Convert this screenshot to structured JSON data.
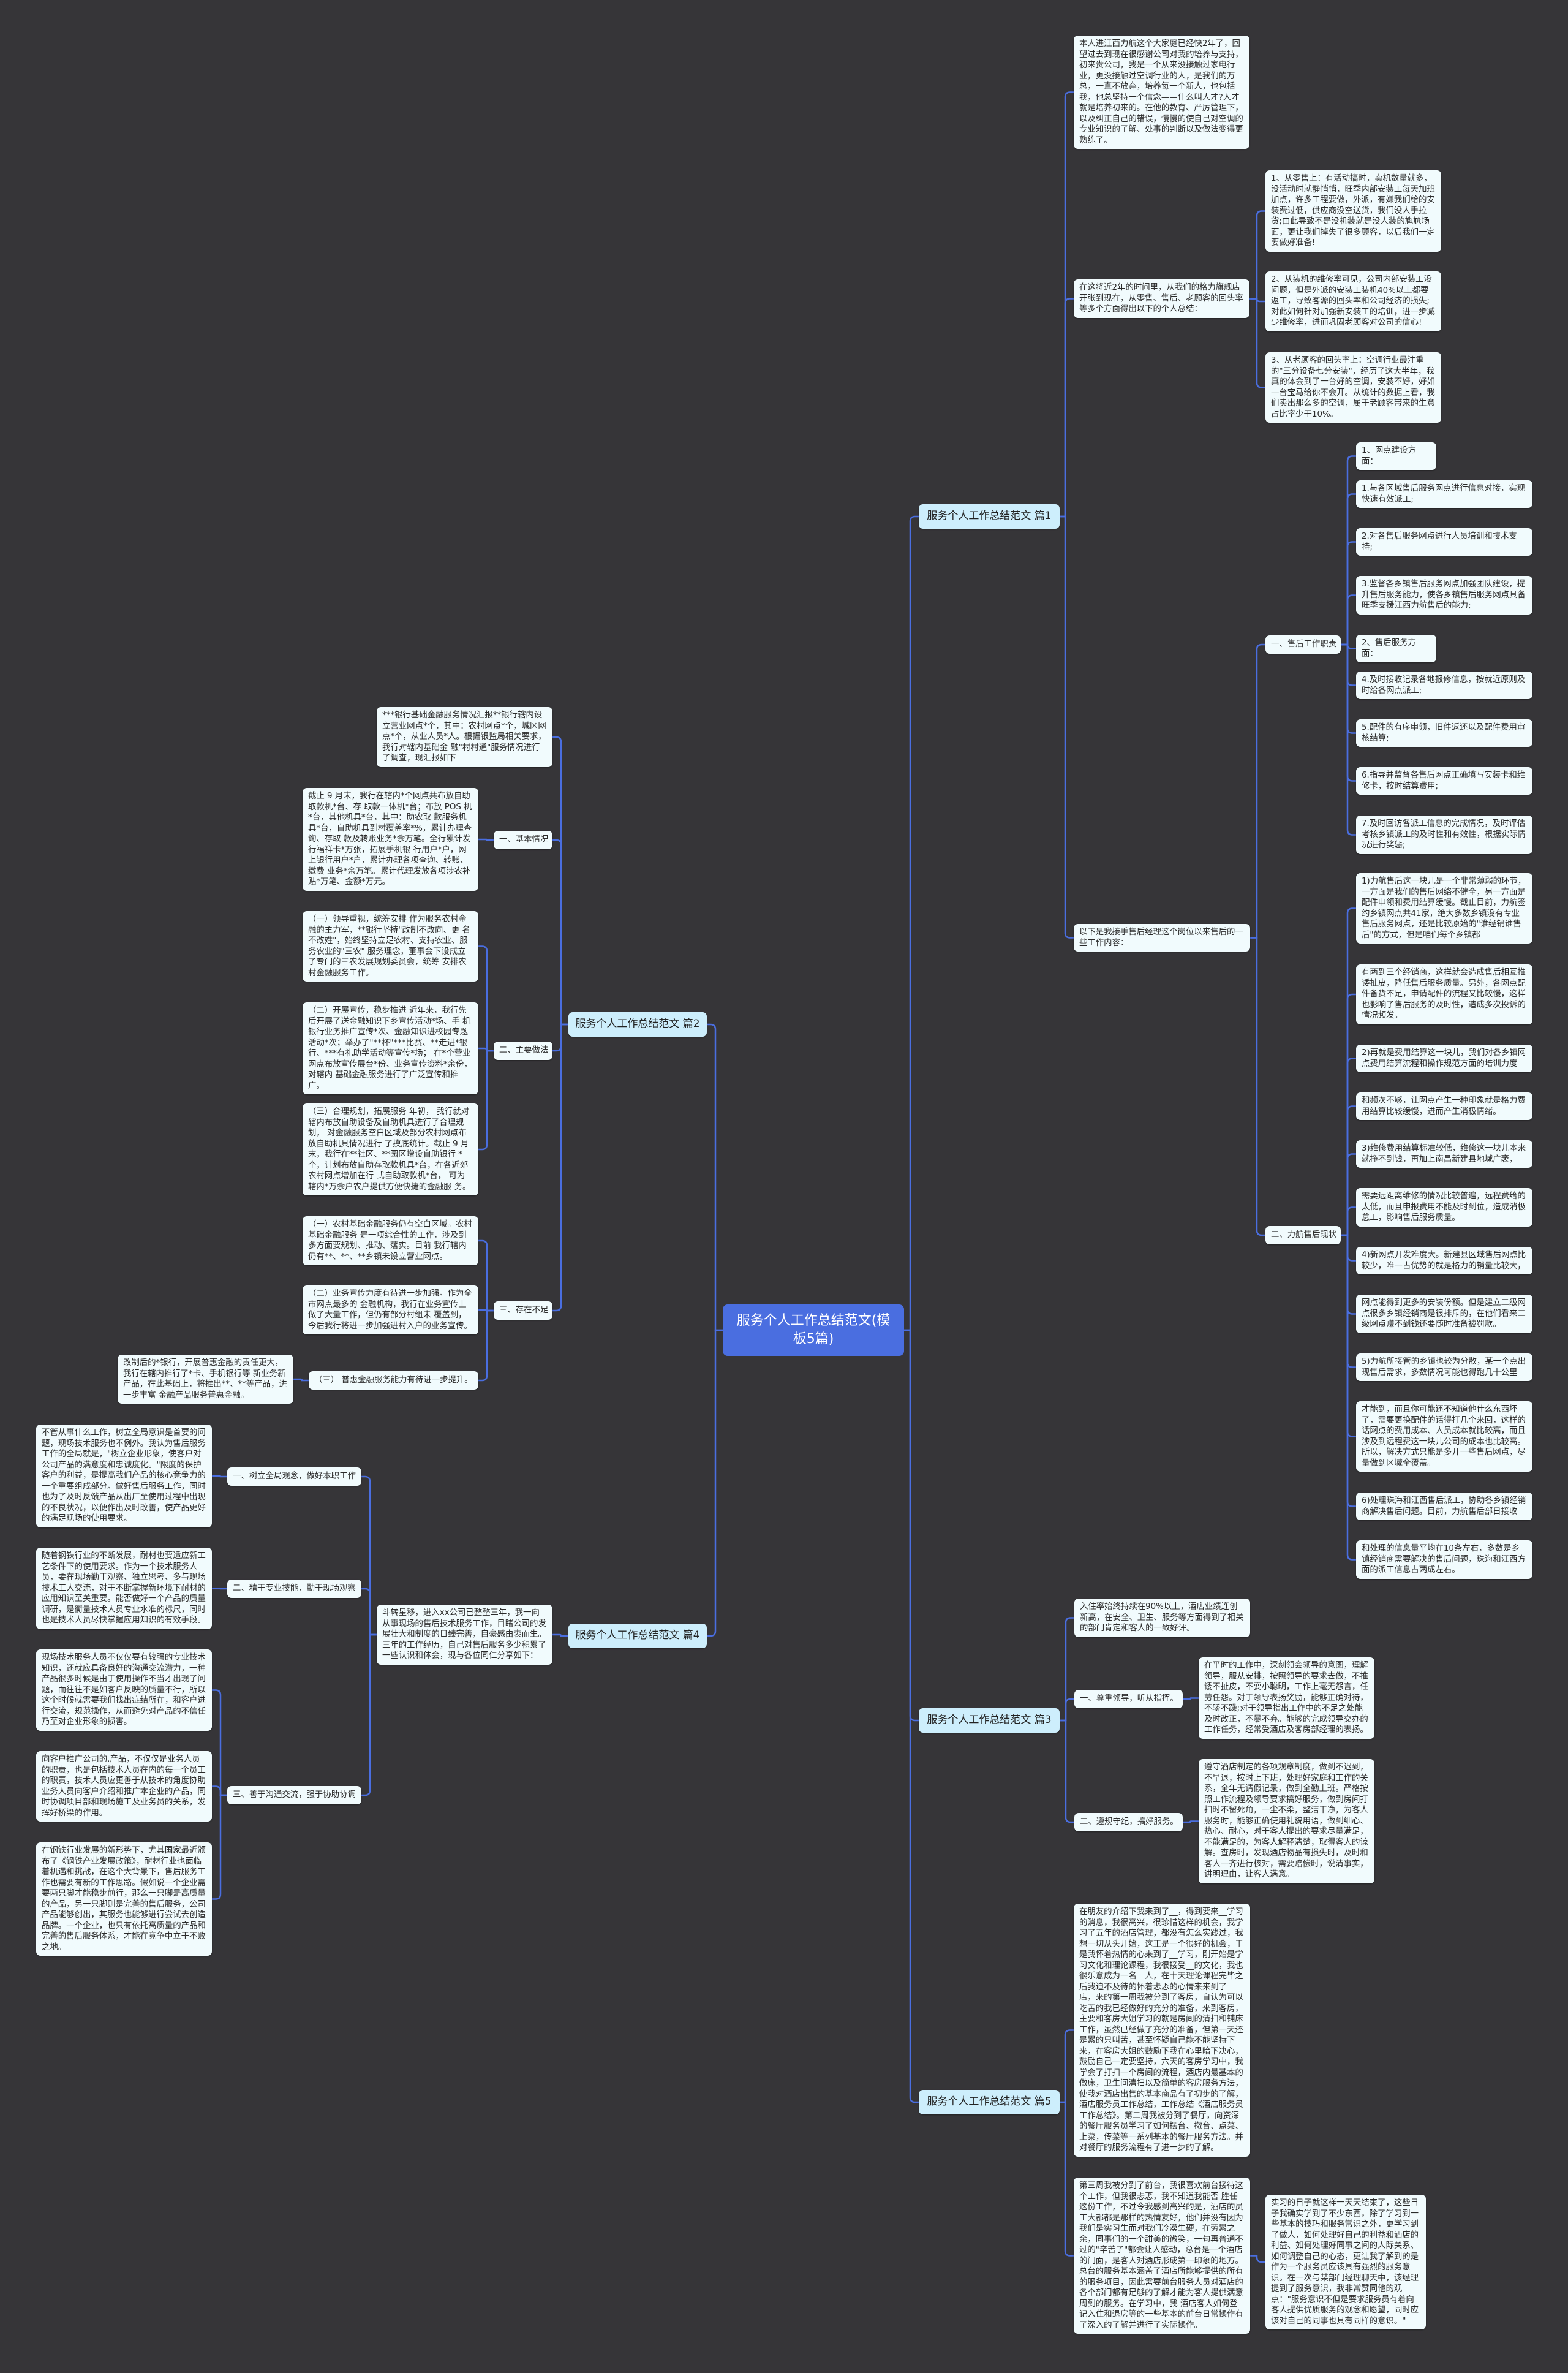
{
  "colors": {
    "background": "#363538",
    "root": "#4a6ee0",
    "branch": "#cdeefc",
    "node": "#f1fbfd",
    "connector": "#4a6ee0"
  },
  "root": {
    "title": "服务个人工作总结范文(模板5篇)"
  },
  "p1": {
    "title": "服务个人工作总结范文 篇1",
    "intro": "本人进江西力航这个大家庭已经快2年了，回望过去到现在很感谢公司对我的培养与支持，初来贵公司，我是一个从来没接触过家电行业，更没接触过空调行业的人，是我们的万总，一直不放弃，培养每一个新人，也包括我，他总坚持一个信念——什么叫人才?人才就是培养初来的。在他的教育、严厉管理下，以及纠正自己的错误，慢慢的使自己对空调的专业知识的了解、处事的判断以及做法变得更熟练了。",
    "summary": "在这将近2年的时间里，从我们的格力旗舰店开张到现在，从零售、售后、老顾客的回头率等多个方面得出以下的个人总结：",
    "summary_items": [
      "1、从零售上：有活动搞时，卖机数量就多，没活动时就静悄悄，旺季内部安装工每天加班加点，许多工程要做，外派，有嫌我们给的安装费过低，供应商没空送货，我们没人手拉货;由此导致不是没机装就是没人装的尴尬场面，更让我们掉失了很多顾客，以后我们一定要做好准备!",
      "2、从装机的维修率可见，公司内部安装工没问题，但是外派的安装工装机40%以上都要返工，导致客源的回头率和公司经济的损失;对此如何针对加强新安装工的培训，进一步减少维修率，进而巩固老顾客对公司的信心!",
      "3、从老顾客的回头率上：空调行业最注重的\"三分设备七分安装\"，经历了这大半年，我真的体会到了一台好的空调，安装不好，好如一台宝马给你不会开。从统计的数据上看，我们卖出那么多的空调，属于老顾客带来的生意占比率少于10%。"
    ],
    "work": "以下是我接手售后经理这个岗位以来售后的一些工作内容：",
    "duties": {
      "label": "一、售后工作职责",
      "items": [
        "1、网点建设方面：",
        "1.与各区域售后服务网点进行信息对接，实现快速有效派工;",
        "2.对各售后服务网点进行人员培训和技术支持;",
        "3.监督各乡镇售后服务网点加强团队建设，提升售后服务能力，使各乡镇售后服务网点具备旺季支援江西力航售后的能力;",
        "2、售后服务方面：",
        "4.及时接收记录各地报修信息，按就近原则及时给各网点派工;",
        "5.配件的有序申领，旧件返还以及配件费用审核结算;",
        "6.指导并监督各售后网点正确填写安装卡和维修卡，按时结算费用;",
        "7.及时回访各派工信息的完成情况，及时评估考核乡镇派工的及时性和有效性，根据实际情况进行奖惩;"
      ]
    },
    "status": {
      "label": "二、力航售后现状",
      "items": [
        "1)力航售后这一块儿是一个非常薄弱的环节，一方面是我们的售后网络不健全，另一方面是配件申领和费用结算缓慢。截止目前，力航签约乡镇网点共41家，绝大多数乡镇没有专业售后服务网点，还是比较原始的\"谁经销谁售后\"的方式，但是咱们每个乡镇都",
        "有两到三个经销商，这样就会造成售后相互推诿扯皮，降低售后服务质量。另外，各网点配件备货不足，申请配件的流程又比较慢，这样也影响了售后服务的及时性，造成多次投诉的情况频发。",
        "2)再就是费用结算这一块儿，我们对各乡镇网点费用结算流程和操作规范方面的培训力度",
        "和频次不够，让网点产生一种印象就是格力费用结算比较缓慢，进而产生消极情绪。",
        "3)维修费用结算标准较低，维修这一块儿本来就挣不到钱，再加上南昌新建县地域广袤，",
        "需要远距离维修的情况比较普遍，远程费给的太低，而且申报费用不能及时到位，造成消极怠工，影响售后服务质量。",
        "4)新网点开发难度大。新建县区域售后网点比较少，唯一占优势的就是格力的销量比较大，",
        "网点能得到更多的安装份额。但是建立二级网点很多乡镇经销商是很排斥的，在他们看来二级网点赚不到钱还要随时准备被罚款。",
        "5)力航所接管的乡镇也较为分散，某一个点出现售后需求，多数情况可能也得跑几十公里",
        "才能到，而且你可能还不知道他什么东西坏了，需要更换配件的话得打几个来回，这样的话网点的费用成本、人员成本就比较高，而且涉及到远程费这一块儿公司的成本也比较高。所以，解决方式只能是多开一些售后网点，尽量做到区域全覆盖。",
        "6)处理珠海和江西售后派工，协助各乡镇经销商解决售后问题。目前，力航售后部日接收",
        "和处理的信息量平均在10条左右，多数是乡镇经销商需要解决的售后问题，珠海和江西方面的派工信息占两成左右。"
      ]
    }
  },
  "p2": {
    "title": "服务个人工作总结范文 篇2",
    "intro": "***银行基础金融服务情况汇报**银行辖内设立营业网点*个，其中：农村网点*个，城区网点*个，从业人员*人。根据银监局相关要求，我行对辖内基础金 融\"村村通\"服务情况进行了调查，现汇报如下",
    "basic": {
      "label": "一、基本情况",
      "text": "截止 9 月末，我行在辖内*个网点共布放自助取款机*台、存 取款一体机*台；布放 POS 机*台，其他机具*台，其中：助农取 款服务机具*台，自助机具到村覆盖率*%，累计办理查询、存取 款及转账业务*余万笔。全行累计发行福祥卡*万张，拓展手机银 行用户*户，网上银行用户*户，累计办理各项查询、转账、缴费 业务*余万笔。累计代理发放各项涉农补贴*万笔、金额*万元。"
    },
    "practice": {
      "label": "二、主要做法",
      "items": [
        "（一）领导重视，统筹安排 作为服务农村金融的主力军，**银行坚持\"改制不改向、更 名不改姓\"，始终坚持立足农村、支持农业、服务农业的\"三农\" 服务理念，董事会下设成立了专门的三农发展规划委员会，统筹 安排农村金融服务工作。",
        "（二）开展宣传，稳步推进 近年来，我行先后开展了送金融知识下乡宣传活动*场、手 机银行业务推广宣传*次、金融知识进校园专题活动*次；举办了\"**杯\"***比赛、**走进*银行、***有礼助学活动等宣传*场； 在*个营业网点布放宣传展台*份、业务宣传资料*余份，对辖内 基础金融服务进行了广泛宣传和推广。",
        "（三）合理规划，拓展服务 年初， 我行就对辖内布放自助设备及自助机具进行了合理规划， 对金融服务空白区域及部分农村网点布放自助机具情况进行 了摸底统计。截止 9 月末，我行在**社区、**园区增设自助银行 *个，计划布放自助存取款机具*台，在各近郊农村网点增加在行 式自助取款机*台， 可为辖内*万余户农户提供方便快捷的金融服 务。"
      ]
    },
    "shortage": {
      "label": "三、存在不足",
      "items": [
        "（一）农村基础金融服务仍有空白区域。农村基础金融服务 是一项综合性的工作，涉及到多方面要规划、推动、落实。目前 我行辖内仍有**、**、**乡镇未设立营业网点。",
        "（二）业务宣传力度有待进一步加强。作为全市网点最多的 金融机构，我行在业务宣传上做了大量工作，但仍有部分村组未 覆盖到，今后我行将进一步加强进村入户的业务宣传。"
      ],
      "third": {
        "label": "（三） 普惠金融服务能力有待进一步提升。",
        "text": "改制后的*银行，开展普惠金融的责任更大，我行在辖内推行了*卡、手机银行等 新业务新产品，在此基础上，将推出**、**等产品，进一步丰富 金融产品服务普惠金融。"
      }
    }
  },
  "p3": {
    "title": "服务个人工作总结范文 篇3",
    "intro": "入住率始终持续在90%以上，酒店业绩连创新高，在安全、卫生、服务等方面得到了相关的部门肯定和客人的一致好评。",
    "s1": {
      "label": "一、尊重领导，听从指挥。",
      "text": "在平时的工作中，深刻领会领导的意图，理解领导，服从安排，按照领导的要求去做，不推诿不扯皮，不耍小聪明，工作上毫无怨言，任劳任怨。对于领导表扬奖励，能够正确对待，不骄不躁;对于领导指出工作中的不足之处能及时改正，不暴不弃。能够的完成领导交办的工作任务，经常受酒店及客房部经理的表扬。"
    },
    "s2": {
      "label": "二、遵规守纪，搞好服务。",
      "text": "遵守酒店制定的各项规章制度，做到不迟到，不早退，按时上下班，处理好家庭和工作的关系，全年无请假记录，做到全勤上班。严格按照工作流程及领导要求搞好服务，做到房间打扫时不留死角，一尘不染，整洁干净，为客人服务时，能够正确使用礼貌用语，做到细心、热心、耐心，对于客人提出的要求尽量满足，不能满足的，为客人解释清楚，取得客人的谅解。查房时，发现酒店物品有损失时，及时和客人一齐进行核对，需要赔偿时，说清事实，讲明理由，让客人满意。"
    }
  },
  "p4": {
    "title": "服务个人工作总结范文 篇4",
    "intro": "斗转星移，进入xx公司已整整三年，我一向从事现场的售后技术服务工作，目睹公司的发展壮大和制度的日臻完善，自豪感由衷而生。三年的工作经历，自己对售后服务多少积累了一些认识和体会，现与各位同仁分享如下：",
    "s1": {
      "label": "一、树立全局观念，做好本职工作",
      "text": "不管从事什么工作，树立全局意识是首要的问题，现场技术服务也不例外。我认为售后服务工作的全局就是，\"树立企业形象，使客户对公司产品的满意度和忠诚度化。\"限度的保护客户的利益，是提高我们产品的核心竞争力的一个重要组成部分。做好售后服务工作，同时也为了及时反馈产品从出厂至使用过程中出现的不良状况，以便作出及时改善，使产品更好的满足现场的使用要求。"
    },
    "s2": {
      "label": "二、精于专业技能，勤于现场观察",
      "text": "随着钢铁行业的不断发展，耐材也要适应新工艺条件下的使用要求。作为一个技术服务人员，要在现场勤于观察、独立思考、多与现场技术工人交流，对于不断掌握新环境下耐材的应用知识至关重要。能否做好一个产品的质量调研，是衡量技术人员专业水准的标尺，同时也是技术人员尽快掌握应用知识的有效手段。"
    },
    "s3": {
      "label": "三、善于沟通交流，强于协助协调",
      "items": [
        "现场技术服务人员不仅仅要有较强的专业技术知识，还就应具备良好的沟通交流潜力，一种产品很多时候是由于使用操作不当才出现了问题，而往往不是如客户反映的质量不行，所以这个时候就需要我们找出症结所在，和客户进行交流，规范操作，从而避免对产品的不信任乃至对企业形象的损害。",
        "向客户推广公司的.产品，不仅仅是业务人员的职责，也是包括技术人员在内的每一个员工的职责，技术人员应更善于从技术的角度协助业务人员向客户介绍和推广本企业的产品，同时协调项目部和现场施工及业务员的关系，发挥好桥梁的作用。",
        "在钢铁行业发展的新形势下，尤其国家最近颁布了《钢铁产业发展政策》，耐材行业也面临着机遇和挑战，在这个大背景下，售后服务工作也需要有新的工作思路。假如说一个企业需要两只脚才能稳步前行，那么一只脚是高质量的产品，另一只脚则是完善的售后服务，公司产品能够创出，其服务也能够进行尝试去创造品牌。一个企业，也只有依托高质量的产品和完善的售后服务体系，才能在竞争中立于不败之地。"
      ]
    }
  },
  "p5": {
    "title": "服务个人工作总结范文 篇5",
    "items": [
      "在朋友的介绍下我来到了__，得到要来__学习的消息，我很高兴，很珍惜这样的机会，我学习了五年的酒店管理，都没有怎么实践过，我想一切从头开始，这正是一个很好的机会，于是我怀着热情的心来到了__学习，刚开始是学习文化和理论课程，我很接受__的文化，我也很乐意成为一名__人，在十天理论课程完毕之后我迫不及待的怀着忐忑的心情来来到了__店，来的第一周我被分到了客房，自认为可以吃苦的我已经做好的充分的准备，来到客房，主要和客房大姐学习的就是房间的清扫和铺床工作，虽然已经做了充分的准备，但第一天还是累的只叫苦，甚至怀疑自己能不能坚持下来，在客房大姐的鼓励下我在心里暗下决心，鼓励自己一定要坚持，六天的客房学习中，我学会了打扫一个房间的流程，酒店内最基本的做床，卫生间清扫以及简单的客房服务方法，使我对酒店出售的基本商品有了初步的了解，酒店服务员工作总结，工作总结《酒店服务员工作总结》。第二周我被分到了餐厅，向资深的餐厅服务员学习了如何摆台、撤台、点菜、上菜，传菜等一系列基本的餐厅服务方法。并对餐厅的服务流程有了进一步的了解。",
      "第三周我被分到了前台，我很喜欢前台接待这个工作，但我很忐忑，我不知道我能否 胜任这份工作，不过令我感到高兴的是，酒店的员工大都都是那样的热情友好，他们并没有因为我们是实习生而对我们冷漠生硬，在劳累之余，同事们的一个甜美的微笑，一句再普通不过的\"辛苦了\"都会让人感动，总台是一个酒店的门面，是客人对酒店形成第一印象的地方。总台的服务基本涵盖了酒店所能够提供的所有的服务项目，因此需要前台服务人员对酒店的各个部门都有足够的了解才能为客人提供满意周到的服务。在学习中，我 酒店客人如何登记入住和退房等的一些基本的前台日常操作有了深入的了解并进行了实际操作。",
      "实习的日子就这样一天天结束了，这些日子我确实学到了不少东西，除了学习到一些基本的技巧和服务常识之外，更学习到了做人，如何处理好自己的利益和酒店的利益、如何处理好同事之间的人际关系、如何调整自己的心态，更让我了解到的是作为一个服务员应该具有强烈的服务意识。在一次与某部门经理聊天中，该经理提到了服务意识，我非常赞同他的观点：\"服务意识不但是要求服务员有着向客人提供优质服务的观念和愿望，同时应该对自己的同事也具有同样的意识。\""
    ]
  }
}
